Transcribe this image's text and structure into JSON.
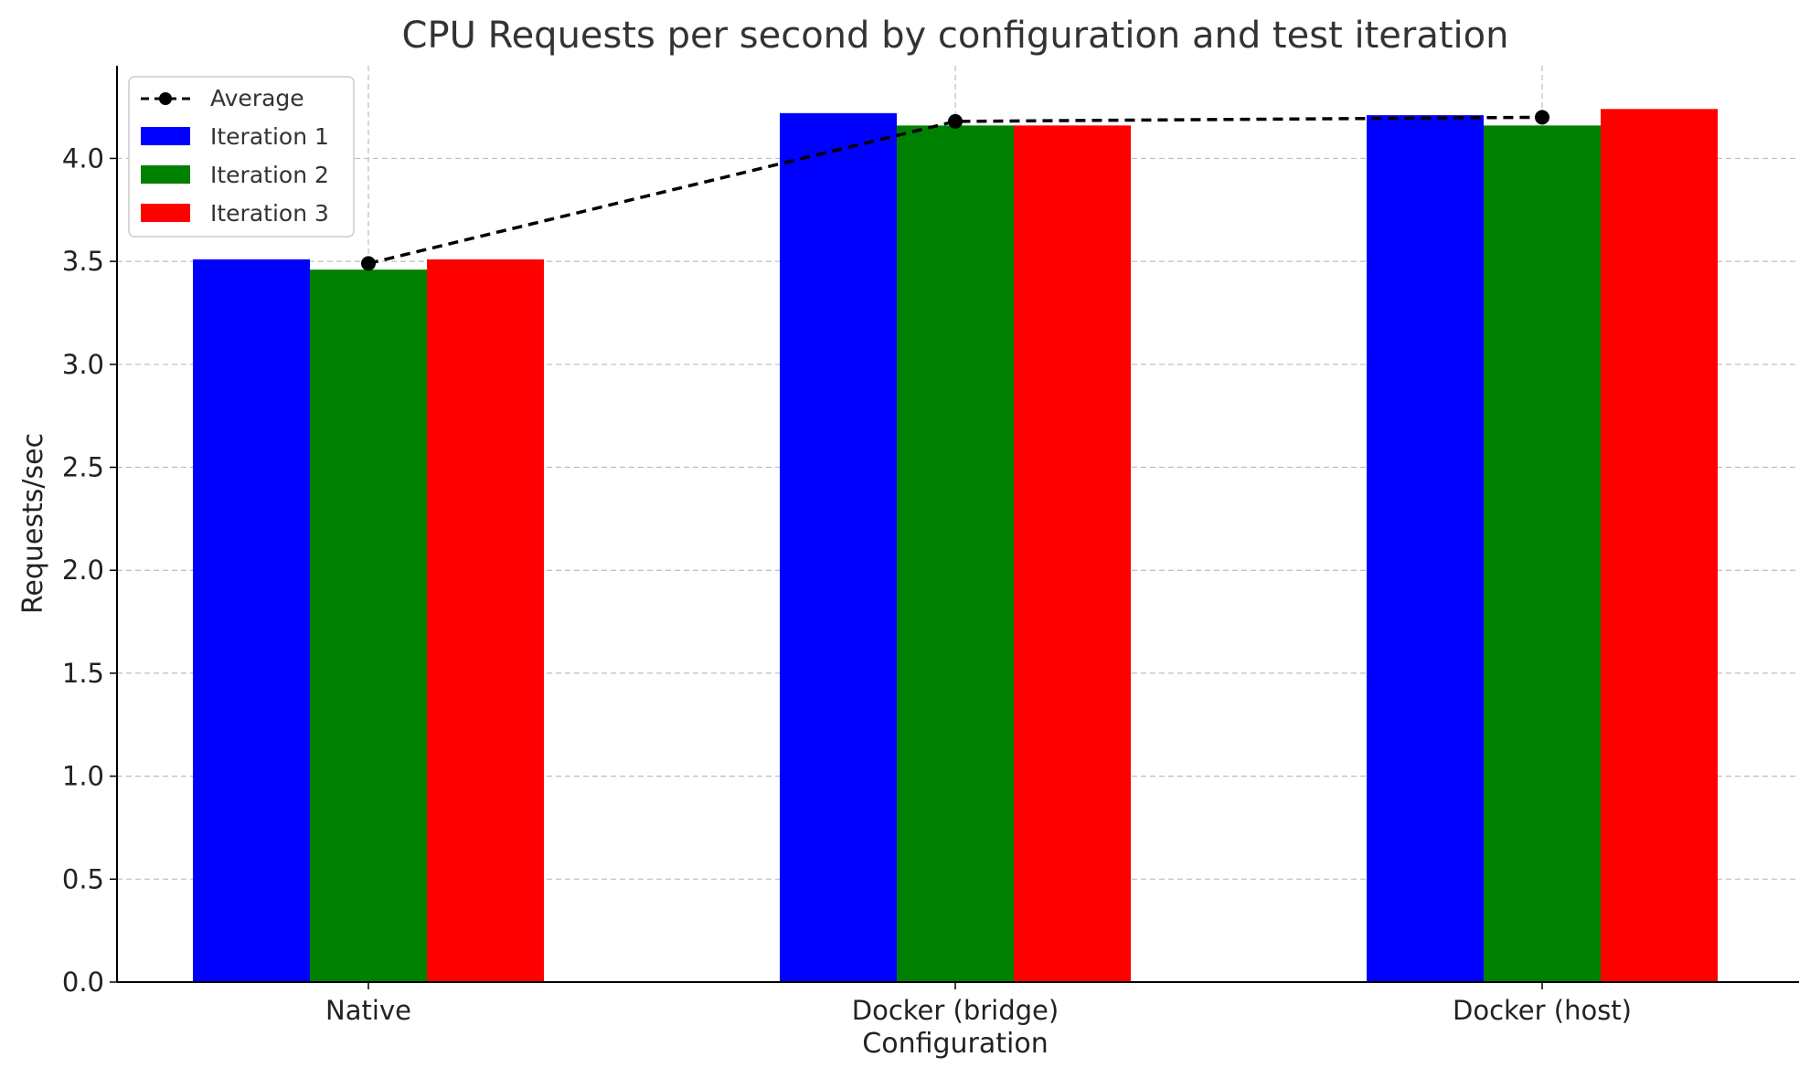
{
  "chart_data": {
    "type": "bar",
    "title": "CPU Requests per second by configuration and test iteration",
    "xlabel": "Configuration",
    "ylabel": "Requests/sec",
    "categories": [
      "Native",
      "Docker (bridge)",
      "Docker (host)"
    ],
    "ylim": [
      0,
      4.45
    ],
    "yticks": [
      0.0,
      0.5,
      1.0,
      1.5,
      2.0,
      2.5,
      3.0,
      3.5,
      4.0
    ],
    "ytick_labels": [
      "0.0",
      "0.5",
      "1.0",
      "1.5",
      "2.0",
      "2.5",
      "3.0",
      "3.5",
      "4.0"
    ],
    "grid": true,
    "legend_position": "top-left",
    "series": [
      {
        "name": "Iteration 1",
        "color": "#0000ff",
        "values": [
          3.51,
          4.22,
          4.21
        ]
      },
      {
        "name": "Iteration 2",
        "color": "#008000",
        "values": [
          3.46,
          4.16,
          4.16
        ]
      },
      {
        "name": "Iteration 3",
        "color": "#ff0000",
        "values": [
          3.51,
          4.16,
          4.24
        ]
      }
    ],
    "average": {
      "name": "Average",
      "color": "#000000",
      "style": "dashed line with circle markers",
      "values": [
        3.49,
        4.18,
        4.2
      ]
    }
  }
}
